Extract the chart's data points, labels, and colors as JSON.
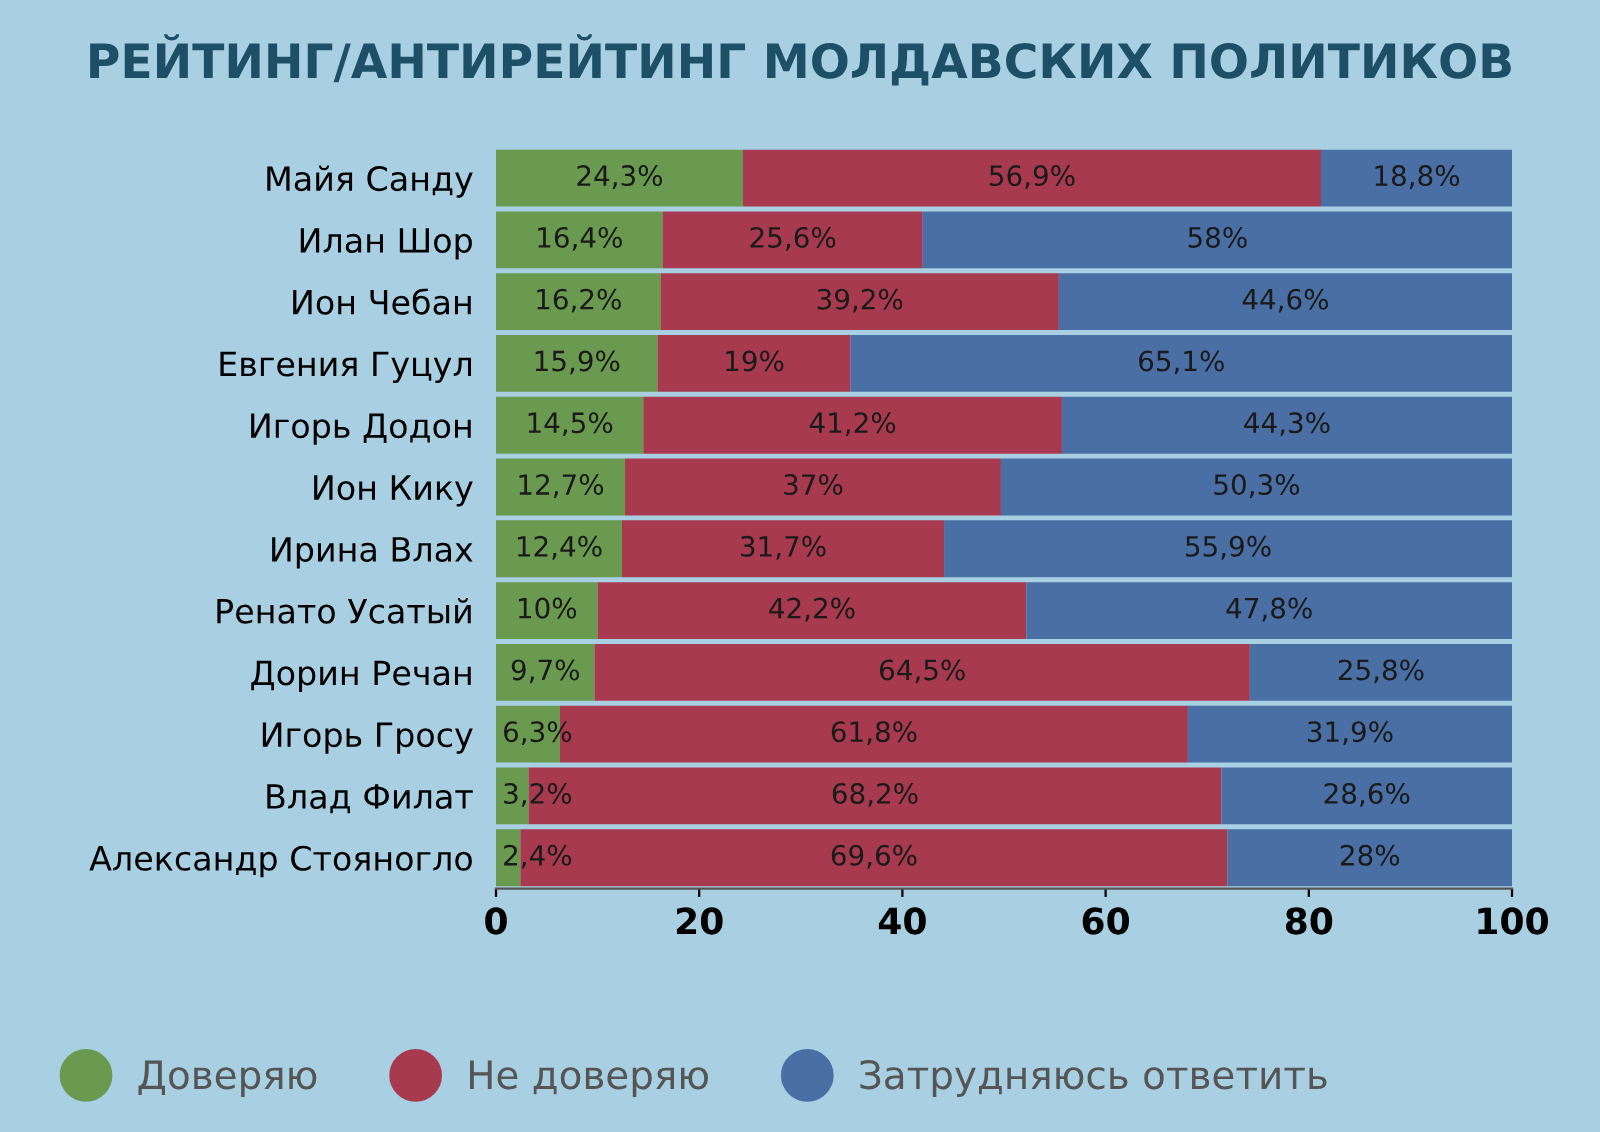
{
  "chart_data": {
    "type": "bar",
    "orientation": "horizontal",
    "stacked": true,
    "title": "РЕЙТИНГ/АНТИРЕЙТИНГ МОЛДАВСКИХ ПОЛИТИКОВ",
    "categories": [
      "Майя Санду",
      "Илан Шор",
      "Ион Чебан",
      "Евгения Гуцул",
      "Игорь Додон",
      "Ион Кику",
      "Ирина Влах",
      "Ренато Усатый",
      "Дорин Речан",
      "Игорь Гросу",
      "Влад Филат",
      "Александр Стояногло"
    ],
    "series": [
      {
        "name": "Доверяю",
        "color": "#6a9a4f",
        "values": [
          24.3,
          16.4,
          16.2,
          15.9,
          14.5,
          12.7,
          12.4,
          10,
          9.7,
          6.3,
          3.2,
          2.4
        ],
        "value_labels": [
          "24,3%",
          "16,4%",
          "16,2%",
          "15,9%",
          "14,5%",
          "12,7%",
          "12,4%",
          "10%",
          "9,7%",
          "6,3%",
          "3,2%",
          "2,4%"
        ]
      },
      {
        "name": "Не доверяю",
        "color": "#a83a4f",
        "values": [
          56.9,
          25.6,
          39.2,
          19,
          41.2,
          37,
          31.7,
          42.2,
          64.5,
          61.8,
          68.2,
          69.6
        ],
        "value_labels": [
          "56,9%",
          "25,6%",
          "39,2%",
          "19%",
          "41,2%",
          "37%",
          "31,7%",
          "42,2%",
          "64,5%",
          "61,8%",
          "68,2%",
          "69,6%"
        ]
      },
      {
        "name": "Затрудняюсь ответить",
        "color": "#4a6fa5",
        "values": [
          18.8,
          58,
          44.6,
          65.1,
          44.3,
          50.3,
          55.9,
          47.8,
          25.8,
          31.9,
          28.6,
          28
        ],
        "value_labels": [
          "18,8%",
          "58%",
          "44,6%",
          "65,1%",
          "44,3%",
          "50,3%",
          "55,9%",
          "47,8%",
          "25,8%",
          "31,9%",
          "28,6%",
          "28%"
        ]
      }
    ],
    "xlim": [
      0,
      100
    ],
    "xticks": [
      0,
      20,
      40,
      60,
      80,
      100
    ],
    "grid": false,
    "legend": "bottom"
  }
}
